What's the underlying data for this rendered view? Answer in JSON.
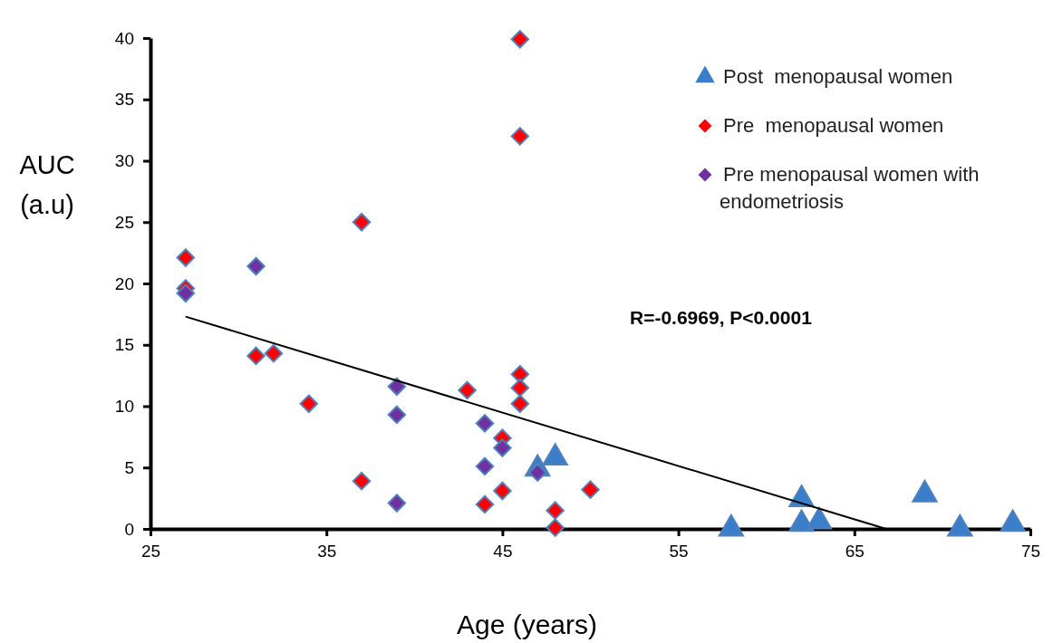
{
  "chart_data": {
    "type": "scatter",
    "xlabel": "Age (years)",
    "ylabel": "AUC (a.u)",
    "xlim": [
      25,
      75
    ],
    "ylim": [
      0,
      40
    ],
    "xticks": [
      25,
      35,
      45,
      55,
      65,
      75
    ],
    "yticks": [
      0,
      5,
      10,
      15,
      20,
      25,
      30,
      35,
      40
    ],
    "grid": false,
    "legend": "top right",
    "annotations": [
      "R=-0.6969, P<0.0001"
    ],
    "series": [
      {
        "name": "Post  menopausal women",
        "color": "#3a7dc9",
        "marker": "triangle",
        "x": [
          47,
          48,
          58,
          62,
          62,
          63,
          69,
          71,
          74
        ],
        "values": [
          4.9,
          5.8,
          0,
          2.4,
          0.4,
          0.6,
          2.8,
          0,
          0.4
        ]
      },
      {
        "name": "Pre  menopausal women",
        "color": "#ff0000",
        "marker": "diamond",
        "x": [
          27,
          27,
          37,
          46,
          46,
          31,
          32,
          34,
          43,
          46,
          46,
          46,
          45,
          37,
          44,
          45,
          48,
          48,
          50
        ],
        "values": [
          22.1,
          19.6,
          25.0,
          39.9,
          32.0,
          14.1,
          14.3,
          10.2,
          11.3,
          12.6,
          11.5,
          10.2,
          7.4,
          3.9,
          2.0,
          3.1,
          1.5,
          0.1,
          3.2
        ]
      },
      {
        "name": "Pre menopausal women with endometriosis",
        "color": "#7030a0",
        "marker": "diamond",
        "x": [
          27,
          31,
          39,
          39,
          39,
          44,
          44,
          45,
          47
        ],
        "values": [
          19.2,
          21.4,
          11.6,
          9.3,
          2.1,
          8.6,
          5.1,
          6.6,
          4.6
        ]
      },
      {
        "type": "line",
        "color": "#000000",
        "marker": "none",
        "x": [
          27,
          66.8
        ],
        "values": [
          17.3,
          0
        ]
      }
    ]
  }
}
